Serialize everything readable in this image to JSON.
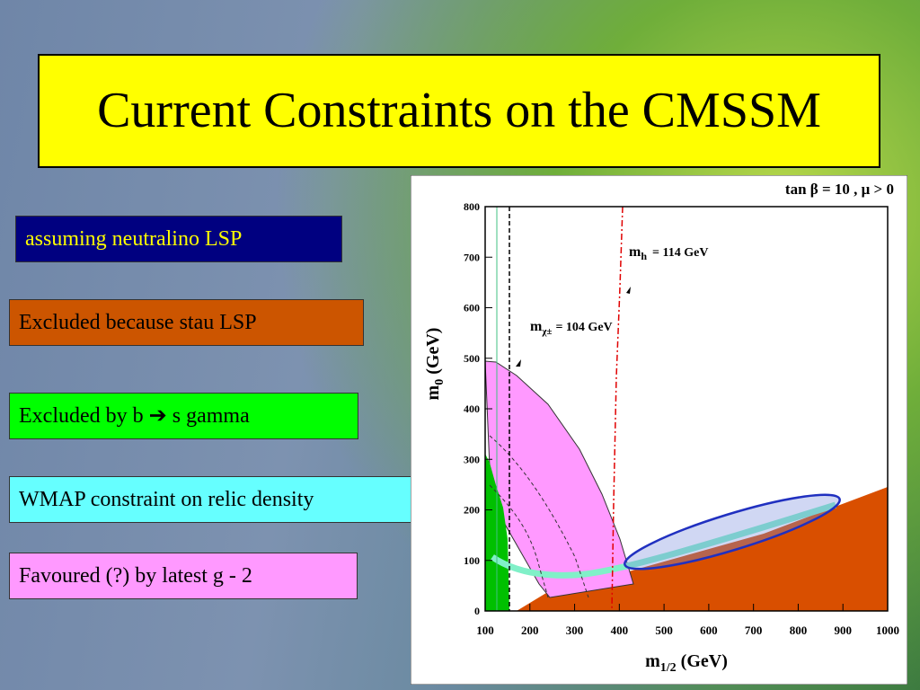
{
  "title": "Current Constraints on the CMSSM",
  "labels": {
    "neutralino": "assuming neutralino LSP",
    "stau": "Excluded because stau LSP",
    "bsgamma_pre": "Excluded by b",
    "bsgamma_post": "s gamma",
    "wmap": "WMAP constraint on relic density",
    "g2": "Favoured (?) by latest g - 2"
  },
  "figure": {
    "title": "tan β = 10 ,  μ > 0",
    "xlabel": "m",
    "xlabel_sub": "1/2",
    "xlabel_unit": " (GeV)",
    "ylabel": "m",
    "ylabel_sub": "0",
    "ylabel_unit": " (GeV)",
    "mh_label": "m",
    "mh_sub": "h",
    "mh_value": "= 114 GeV",
    "mchi_label": "m",
    "mchi_sub": "χ±",
    "mchi_value": "= 104 GeV",
    "xlim": [
      100,
      1000
    ],
    "ylim": [
      0,
      800
    ],
    "xticks": [
      100,
      200,
      300,
      400,
      500,
      600,
      700,
      800,
      900,
      1000
    ],
    "yticks": [
      0,
      100,
      200,
      300,
      400,
      500,
      600,
      700,
      800
    ]
  }
}
